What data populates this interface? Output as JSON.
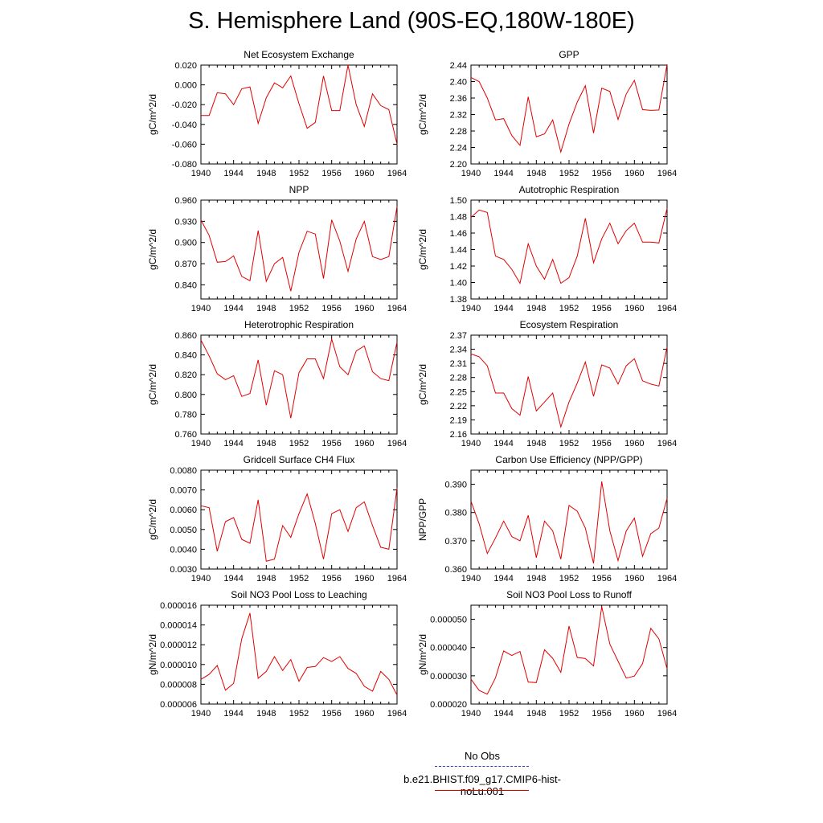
{
  "title": "S. Hemisphere Land (90S-EQ,180W-180E)",
  "legend": [
    {
      "label": "No Obs",
      "color": "#2a3bb8",
      "style": "dashed"
    },
    {
      "label": "b.e21.BHIST.f09_g17.CMIP6-hist-noLu.001",
      "color": "#e00000",
      "style": "solid"
    }
  ],
  "chart_data": [
    {
      "type": "line",
      "title": "Net Ecosystem Exchange",
      "ylabel": "gC/m^2/d",
      "x": [
        1940,
        1941,
        1942,
        1943,
        1944,
        1945,
        1946,
        1947,
        1948,
        1949,
        1950,
        1951,
        1952,
        1953,
        1954,
        1955,
        1956,
        1957,
        1958,
        1959,
        1960,
        1961,
        1962,
        1963,
        1964
      ],
      "xlim": [
        1940,
        1964
      ],
      "xticks": [
        "1940",
        "1944",
        "1948",
        "1952",
        "1956",
        "1960",
        "1964"
      ],
      "ylim": [
        -0.08,
        0.02
      ],
      "yticks": [
        "-0.080",
        "-0.060",
        "-0.040",
        "-0.020",
        "0.000",
        "0.020"
      ],
      "series": [
        {
          "values": [
            -0.031,
            -0.031,
            -0.008,
            -0.009,
            -0.02,
            -0.004,
            -0.002,
            -0.039,
            -0.013,
            0.002,
            -0.003,
            0.009,
            -0.019,
            -0.044,
            -0.038,
            0.009,
            -0.026,
            -0.026,
            0.02,
            -0.02,
            -0.042,
            -0.009,
            -0.021,
            -0.025,
            -0.06
          ],
          "color": "#e00000"
        }
      ]
    },
    {
      "type": "line",
      "title": "GPP",
      "ylabel": "gC/m^2/d",
      "x": [
        1940,
        1941,
        1942,
        1943,
        1944,
        1945,
        1946,
        1947,
        1948,
        1949,
        1950,
        1951,
        1952,
        1953,
        1954,
        1955,
        1956,
        1957,
        1958,
        1959,
        1960,
        1961,
        1962,
        1963,
        1964
      ],
      "xlim": [
        1940,
        1964
      ],
      "xticks": [
        "1940",
        "1944",
        "1948",
        "1952",
        "1956",
        "1960",
        "1964"
      ],
      "ylim": [
        2.2,
        2.44
      ],
      "yticks": [
        "2.20",
        "2.24",
        "2.28",
        "2.32",
        "2.36",
        "2.40",
        "2.44"
      ],
      "series": [
        {
          "values": [
            2.41,
            2.4,
            2.36,
            2.307,
            2.31,
            2.269,
            2.245,
            2.363,
            2.266,
            2.273,
            2.307,
            2.229,
            2.297,
            2.35,
            2.39,
            2.275,
            2.384,
            2.376,
            2.308,
            2.37,
            2.403,
            2.332,
            2.33,
            2.331,
            2.442
          ],
          "color": "#e00000"
        }
      ]
    },
    {
      "type": "line",
      "title": "NPP",
      "ylabel": "gC/m^2/d",
      "x": [
        1940,
        1941,
        1942,
        1943,
        1944,
        1945,
        1946,
        1947,
        1948,
        1949,
        1950,
        1951,
        1952,
        1953,
        1954,
        1955,
        1956,
        1957,
        1958,
        1959,
        1960,
        1961,
        1962,
        1963,
        1964
      ],
      "xlim": [
        1940,
        1964
      ],
      "xticks": [
        "1940",
        "1944",
        "1948",
        "1952",
        "1956",
        "1960",
        "1964"
      ],
      "ylim": [
        0.82,
        0.96
      ],
      "yticks": [
        "0.840",
        "0.870",
        "0.900",
        "0.930",
        "0.960"
      ],
      "series": [
        {
          "values": [
            0.932,
            0.91,
            0.872,
            0.873,
            0.881,
            0.852,
            0.846,
            0.917,
            0.845,
            0.87,
            0.879,
            0.831,
            0.886,
            0.916,
            0.912,
            0.849,
            0.932,
            0.902,
            0.859,
            0.905,
            0.93,
            0.88,
            0.876,
            0.88,
            0.951
          ],
          "color": "#e00000"
        }
      ]
    },
    {
      "type": "line",
      "title": "Autotrophic Respiration",
      "ylabel": "gC/m^2/d",
      "x": [
        1940,
        1941,
        1942,
        1943,
        1944,
        1945,
        1946,
        1947,
        1948,
        1949,
        1950,
        1951,
        1952,
        1953,
        1954,
        1955,
        1956,
        1957,
        1958,
        1959,
        1960,
        1961,
        1962,
        1963,
        1964
      ],
      "xlim": [
        1940,
        1964
      ],
      "xticks": [
        "1940",
        "1944",
        "1948",
        "1952",
        "1956",
        "1960",
        "1964"
      ],
      "ylim": [
        1.38,
        1.5
      ],
      "yticks": [
        "1.38",
        "1.40",
        "1.42",
        "1.44",
        "1.46",
        "1.48",
        "1.50"
      ],
      "series": [
        {
          "values": [
            1.479,
            1.488,
            1.485,
            1.432,
            1.428,
            1.416,
            1.399,
            1.447,
            1.42,
            1.404,
            1.428,
            1.399,
            1.406,
            1.432,
            1.478,
            1.424,
            1.453,
            1.472,
            1.447,
            1.463,
            1.472,
            1.449,
            1.449,
            1.448,
            1.49
          ],
          "color": "#e00000"
        }
      ]
    },
    {
      "type": "line",
      "title": "Heterotrophic Respiration",
      "ylabel": "gC/m^2/d",
      "x": [
        1940,
        1941,
        1942,
        1943,
        1944,
        1945,
        1946,
        1947,
        1948,
        1949,
        1950,
        1951,
        1952,
        1953,
        1954,
        1955,
        1956,
        1957,
        1958,
        1959,
        1960,
        1961,
        1962,
        1963,
        1964
      ],
      "xlim": [
        1940,
        1964
      ],
      "xticks": [
        "1940",
        "1944",
        "1948",
        "1952",
        "1956",
        "1960",
        "1964"
      ],
      "ylim": [
        0.76,
        0.86
      ],
      "yticks": [
        "0.760",
        "0.780",
        "0.800",
        "0.820",
        "0.840",
        "0.860"
      ],
      "series": [
        {
          "values": [
            0.855,
            0.839,
            0.821,
            0.815,
            0.819,
            0.798,
            0.801,
            0.835,
            0.789,
            0.824,
            0.82,
            0.776,
            0.822,
            0.836,
            0.836,
            0.816,
            0.856,
            0.828,
            0.82,
            0.844,
            0.849,
            0.823,
            0.816,
            0.814,
            0.853
          ],
          "color": "#e00000"
        }
      ]
    },
    {
      "type": "line",
      "title": "Ecosystem Respiration",
      "ylabel": "gC/m^2/d",
      "x": [
        1940,
        1941,
        1942,
        1943,
        1944,
        1945,
        1946,
        1947,
        1948,
        1949,
        1950,
        1951,
        1952,
        1953,
        1954,
        1955,
        1956,
        1957,
        1958,
        1959,
        1960,
        1961,
        1962,
        1963,
        1964
      ],
      "xlim": [
        1940,
        1964
      ],
      "xticks": [
        "1940",
        "1944",
        "1948",
        "1952",
        "1956",
        "1960",
        "1964"
      ],
      "ylim": [
        2.16,
        2.37
      ],
      "yticks": [
        "2.16",
        "2.19",
        "2.22",
        "2.25",
        "2.28",
        "2.31",
        "2.34",
        "2.37"
      ],
      "series": [
        {
          "values": [
            2.33,
            2.324,
            2.305,
            2.247,
            2.247,
            2.214,
            2.2,
            2.282,
            2.209,
            2.228,
            2.247,
            2.175,
            2.228,
            2.268,
            2.313,
            2.24,
            2.307,
            2.3,
            2.266,
            2.305,
            2.32,
            2.273,
            2.266,
            2.262,
            2.345
          ],
          "color": "#e00000"
        }
      ]
    },
    {
      "type": "line",
      "title": "Gridcell Surface CH4 Flux",
      "ylabel": "gC/m^2/d",
      "x": [
        1940,
        1941,
        1942,
        1943,
        1944,
        1945,
        1946,
        1947,
        1948,
        1949,
        1950,
        1951,
        1952,
        1953,
        1954,
        1955,
        1956,
        1957,
        1958,
        1959,
        1960,
        1961,
        1962,
        1963,
        1964
      ],
      "xlim": [
        1940,
        1964
      ],
      "xticks": [
        "1940",
        "1944",
        "1948",
        "1952",
        "1956",
        "1960",
        "1964"
      ],
      "ylim": [
        0.003,
        0.008
      ],
      "yticks": [
        "0.0030",
        "0.0040",
        "0.0050",
        "0.0060",
        "0.0070",
        "0.0080"
      ],
      "series": [
        {
          "values": [
            0.0062,
            0.0061,
            0.0039,
            0.0054,
            0.0056,
            0.0045,
            0.0043,
            0.0065,
            0.0034,
            0.0035,
            0.0052,
            0.0046,
            0.0058,
            0.0068,
            0.0053,
            0.0035,
            0.0058,
            0.006,
            0.0049,
            0.0061,
            0.0064,
            0.0052,
            0.0041,
            0.004,
            0.0071
          ],
          "color": "#e00000"
        }
      ]
    },
    {
      "type": "line",
      "title": "Carbon Use Efficiency (NPP/GPP)",
      "ylabel": "NPP/GPP",
      "x": [
        1940,
        1941,
        1942,
        1943,
        1944,
        1945,
        1946,
        1947,
        1948,
        1949,
        1950,
        1951,
        1952,
        1953,
        1954,
        1955,
        1956,
        1957,
        1958,
        1959,
        1960,
        1961,
        1962,
        1963,
        1964
      ],
      "xlim": [
        1940,
        1964
      ],
      "xticks": [
        "1940",
        "1944",
        "1948",
        "1952",
        "1956",
        "1960",
        "1964"
      ],
      "ylim": [
        0.36,
        0.395
      ],
      "yticks": [
        "0.360",
        "0.370",
        "0.380",
        "0.390"
      ],
      "series": [
        {
          "values": [
            0.384,
            0.376,
            0.3655,
            0.371,
            0.377,
            0.3715,
            0.37,
            0.379,
            0.364,
            0.377,
            0.3735,
            0.3635,
            0.3825,
            0.3805,
            0.3745,
            0.362,
            0.391,
            0.3735,
            0.363,
            0.3735,
            0.378,
            0.3645,
            0.3725,
            0.3745,
            0.385
          ],
          "color": "#e00000"
        }
      ]
    },
    {
      "type": "line",
      "title": "Soil NO3 Pool Loss to Leaching",
      "ylabel": "gN/m^2/d",
      "x": [
        1940,
        1941,
        1942,
        1943,
        1944,
        1945,
        1946,
        1947,
        1948,
        1949,
        1950,
        1951,
        1952,
        1953,
        1954,
        1955,
        1956,
        1957,
        1958,
        1959,
        1960,
        1961,
        1962,
        1963,
        1964
      ],
      "xlim": [
        1940,
        1964
      ],
      "xticks": [
        "1940",
        "1944",
        "1948",
        "1952",
        "1956",
        "1960",
        "1964"
      ],
      "ylim": [
        6e-06,
        1.6e-05
      ],
      "yticks": [
        "0.000006",
        "0.000008",
        "0.000010",
        "0.000012",
        "0.000014",
        "0.000016"
      ],
      "series": [
        {
          "values": [
            8.5e-06,
            9e-06,
            9.9e-06,
            7.4e-06,
            8.1e-06,
            1.26e-05,
            1.52e-05,
            8.6e-06,
            9.3e-06,
            1.08e-05,
            9.4e-06,
            1.05e-05,
            8.3e-06,
            9.7e-06,
            9.8e-06,
            1.07e-05,
            1.03e-05,
            1.08e-05,
            9.6e-06,
            9.1e-06,
            7.8e-06,
            7.3e-06,
            9.3e-06,
            8.5e-06,
            6.9e-06
          ],
          "color": "#e00000"
        }
      ]
    },
    {
      "type": "line",
      "title": "Soil NO3 Pool Loss to Runoff",
      "ylabel": "gN/m^2/d",
      "x": [
        1940,
        1941,
        1942,
        1943,
        1944,
        1945,
        1946,
        1947,
        1948,
        1949,
        1950,
        1951,
        1952,
        1953,
        1954,
        1955,
        1956,
        1957,
        1958,
        1959,
        1960,
        1961,
        1962,
        1963,
        1964
      ],
      "xlim": [
        1940,
        1964
      ],
      "xticks": [
        "1940",
        "1944",
        "1948",
        "1952",
        "1956",
        "1960",
        "1964"
      ],
      "ylim": [
        2e-05,
        5.5e-05
      ],
      "yticks": [
        "0.000020",
        "0.000030",
        "0.000040",
        "0.000050"
      ],
      "series": [
        {
          "values": [
            2.88e-05,
            2.48e-05,
            2.35e-05,
            2.93e-05,
            3.88e-05,
            3.72e-05,
            3.86e-05,
            2.78e-05,
            2.76e-05,
            3.92e-05,
            3.62e-05,
            3.12e-05,
            4.76e-05,
            3.65e-05,
            3.61e-05,
            3.35e-05,
            5.45e-05,
            4.12e-05,
            3.52e-05,
            2.92e-05,
            2.99e-05,
            3.43e-05,
            4.68e-05,
            4.31e-05,
            3.25e-05
          ],
          "color": "#e00000"
        }
      ]
    }
  ]
}
